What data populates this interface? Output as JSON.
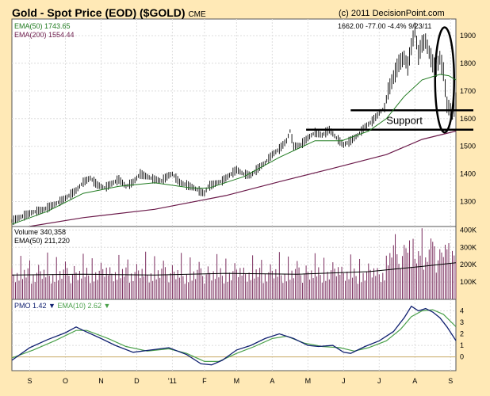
{
  "header": {
    "title": "Gold - Spot Price (EOD) ($GOLD)",
    "exchange": "CME",
    "copyright": "(c) 2011 DecisionPoint.com"
  },
  "colors": {
    "background": "#ffe9b6",
    "panel": "#ffffff",
    "price": "#000000",
    "ema50": "#1f7a1f",
    "ema200": "#6b1a4a",
    "volume": "#7a2d5e",
    "pmo": "#102070",
    "pmo_ema": "#4aa04a",
    "zero_line": "#c8aa64"
  },
  "chart_data": [
    {
      "type": "line",
      "name": "price-panel",
      "legend": [
        {
          "label": "EMA(50)",
          "value": "1743.65",
          "color": "#1f7a1f"
        },
        {
          "label": "EMA(200)",
          "value": "1554.44",
          "color": "#6b1a4a"
        }
      ],
      "last_info": "1662.00  -77.00  -4.4%  9/23/11",
      "ylim": [
        1210,
        1960
      ],
      "y_ticks": [
        "1300",
        "1400",
        "1500",
        "1600",
        "1700",
        "1800",
        "1900"
      ],
      "series": [
        {
          "points": [
            [
              0,
              1230
            ],
            [
              6,
              1247
            ],
            [
              12,
              1262
            ],
            [
              18,
              1272
            ],
            [
              24,
              1290
            ],
            [
              30,
              1312
            ],
            [
              36,
              1340
            ],
            [
              40,
              1370
            ],
            [
              44,
              1385
            ],
            [
              48,
              1360
            ],
            [
              52,
              1350
            ],
            [
              56,
              1365
            ],
            [
              60,
              1380
            ],
            [
              64,
              1355
            ],
            [
              68,
              1370
            ],
            [
              72,
              1400
            ],
            [
              76,
              1390
            ],
            [
              80,
              1380
            ],
            [
              84,
              1375
            ],
            [
              88,
              1395
            ],
            [
              90,
              1400
            ],
            [
              94,
              1370
            ],
            [
              98,
              1360
            ],
            [
              102,
              1350
            ],
            [
              106,
              1335
            ],
            [
              108,
              1330
            ],
            [
              110,
              1355
            ],
            [
              114,
              1365
            ],
            [
              118,
              1375
            ],
            [
              122,
              1395
            ],
            [
              126,
              1415
            ],
            [
              130,
              1400
            ],
            [
              134,
              1395
            ],
            [
              138,
              1420
            ],
            [
              142,
              1440
            ],
            [
              146,
              1470
            ],
            [
              150,
              1490
            ],
            [
              154,
              1520
            ],
            [
              156,
              1555
            ],
            [
              158,
              1500
            ],
            [
              162,
              1505
            ],
            [
              166,
              1530
            ],
            [
              170,
              1550
            ],
            [
              174,
              1540
            ],
            [
              178,
              1560
            ],
            [
              182,
              1530
            ],
            [
              186,
              1505
            ],
            [
              190,
              1520
            ],
            [
              194,
              1540
            ],
            [
              198,
              1570
            ],
            [
              202,
              1590
            ],
            [
              206,
              1620
            ],
            [
              209,
              1640
            ],
            [
              211,
              1700
            ],
            [
              214,
              1750
            ],
            [
              217,
              1800
            ],
            [
              220,
              1820
            ],
            [
              222,
              1790
            ],
            [
              224,
              1860
            ],
            [
              226,
              1920
            ],
            [
              228,
              1830
            ],
            [
              230,
              1870
            ],
            [
              232,
              1880
            ],
            [
              234,
              1840
            ],
            [
              236,
              1800
            ],
            [
              238,
              1780
            ],
            [
              240,
              1820
            ],
            [
              242,
              1770
            ],
            [
              244,
              1650
            ],
            [
              247,
              1620
            ],
            [
              249,
              1662
            ]
          ]
        },
        {
          "name": "EMA(50)",
          "points": [
            [
              0,
              1218
            ],
            [
              20,
              1265
            ],
            [
              40,
              1330
            ],
            [
              60,
              1355
            ],
            [
              80,
              1368
            ],
            [
              100,
              1350
            ],
            [
              110,
              1348
            ],
            [
              130,
              1390
            ],
            [
              150,
              1460
            ],
            [
              170,
              1520
            ],
            [
              185,
              1520
            ],
            [
              200,
              1555
            ],
            [
              210,
              1600
            ],
            [
              220,
              1680
            ],
            [
              230,
              1740
            ],
            [
              240,
              1760
            ],
            [
              245,
              1755
            ],
            [
              249,
              1740
            ]
          ]
        },
        {
          "name": "EMA(200)",
          "points": [
            [
              0,
              1200
            ],
            [
              40,
              1242
            ],
            [
              80,
              1272
            ],
            [
              120,
              1322
            ],
            [
              150,
              1372
            ],
            [
              180,
              1420
            ],
            [
              210,
              1470
            ],
            [
              230,
              1525
            ],
            [
              249,
              1555
            ]
          ]
        }
      ],
      "annotations": [
        {
          "type": "hline",
          "y": 1630,
          "x_from": 190,
          "x_to": 249
        },
        {
          "type": "hline",
          "y": 1560,
          "x_from": 165,
          "x_to": 249
        },
        {
          "type": "text",
          "text": "Support",
          "x": 210,
          "y": 1580
        },
        {
          "type": "ellipse",
          "cx": 240,
          "cy": 1740,
          "rx": 5,
          "ry": 190
        }
      ]
    },
    {
      "type": "bar",
      "name": "volume-panel",
      "legend": [
        {
          "label": "Volume",
          "value": "340,358",
          "color": "#000000"
        },
        {
          "label": "EMA(50)",
          "value": "211,220",
          "color": "#000000"
        }
      ],
      "ylim": [
        0,
        420000
      ],
      "y_ticks": [
        "100K",
        "200K",
        "300K",
        "400K"
      ],
      "volume_ema": [
        [
          0,
          140000
        ],
        [
          40,
          145000
        ],
        [
          80,
          140000
        ],
        [
          120,
          150000
        ],
        [
          160,
          145000
        ],
        [
          200,
          160000
        ],
        [
          230,
          190000
        ],
        [
          249,
          211220
        ]
      ]
    },
    {
      "type": "line",
      "name": "pmo-panel",
      "legend": [
        {
          "label": "PMO",
          "value": "1.42",
          "arrow": "down",
          "color": "#102070"
        },
        {
          "label": "EMA(10)",
          "value": "2.62",
          "arrow": "down",
          "color": "#4aa04a"
        }
      ],
      "ylim": [
        -1.2,
        5.0
      ],
      "y_ticks": [
        "0",
        "1",
        "2",
        "3",
        "4"
      ],
      "series": [
        {
          "name": "PMO",
          "points": [
            [
              0,
              -0.3
            ],
            [
              10,
              0.8
            ],
            [
              20,
              1.5
            ],
            [
              30,
              2.1
            ],
            [
              36,
              2.6
            ],
            [
              40,
              2.3
            ],
            [
              50,
              1.6
            ],
            [
              58,
              1.0
            ],
            [
              68,
              0.4
            ],
            [
              78,
              0.6
            ],
            [
              88,
              0.8
            ],
            [
              98,
              0.2
            ],
            [
              106,
              -0.6
            ],
            [
              112,
              -0.7
            ],
            [
              118,
              -0.3
            ],
            [
              126,
              0.6
            ],
            [
              134,
              1.0
            ],
            [
              142,
              1.6
            ],
            [
              150,
              2.0
            ],
            [
              158,
              1.6
            ],
            [
              166,
              1.0
            ],
            [
              172,
              0.9
            ],
            [
              180,
              1.0
            ],
            [
              186,
              0.4
            ],
            [
              190,
              0.3
            ],
            [
              198,
              0.9
            ],
            [
              206,
              1.4
            ],
            [
              214,
              2.2
            ],
            [
              220,
              3.4
            ],
            [
              224,
              4.4
            ],
            [
              228,
              4.0
            ],
            [
              232,
              4.2
            ],
            [
              236,
              3.9
            ],
            [
              240,
              3.4
            ],
            [
              244,
              2.6
            ],
            [
              249,
              1.42
            ]
          ]
        },
        {
          "name": "EMA(10)",
          "points": [
            [
              0,
              -0.1
            ],
            [
              12,
              0.6
            ],
            [
              24,
              1.4
            ],
            [
              36,
              2.3
            ],
            [
              42,
              2.3
            ],
            [
              54,
              1.6
            ],
            [
              64,
              0.9
            ],
            [
              76,
              0.5
            ],
            [
              88,
              0.7
            ],
            [
              98,
              0.3
            ],
            [
              108,
              -0.4
            ],
            [
              116,
              -0.4
            ],
            [
              126,
              0.3
            ],
            [
              136,
              0.9
            ],
            [
              146,
              1.6
            ],
            [
              154,
              1.8
            ],
            [
              164,
              1.2
            ],
            [
              174,
              0.9
            ],
            [
              184,
              0.8
            ],
            [
              192,
              0.5
            ],
            [
              200,
              0.8
            ],
            [
              210,
              1.4
            ],
            [
              218,
              2.4
            ],
            [
              224,
              3.5
            ],
            [
              230,
              4.0
            ],
            [
              236,
              4.1
            ],
            [
              242,
              3.7
            ],
            [
              249,
              2.62
            ]
          ]
        }
      ]
    }
  ],
  "x_axis": {
    "months": [
      "S",
      "O",
      "N",
      "D",
      "'11",
      "F",
      "M",
      "A",
      "M",
      "J",
      "J",
      "A",
      "S"
    ],
    "month_x": [
      10,
      30,
      50,
      70,
      90,
      108,
      126,
      146,
      166,
      186,
      206,
      226,
      246
    ],
    "range": [
      0,
      249
    ]
  }
}
